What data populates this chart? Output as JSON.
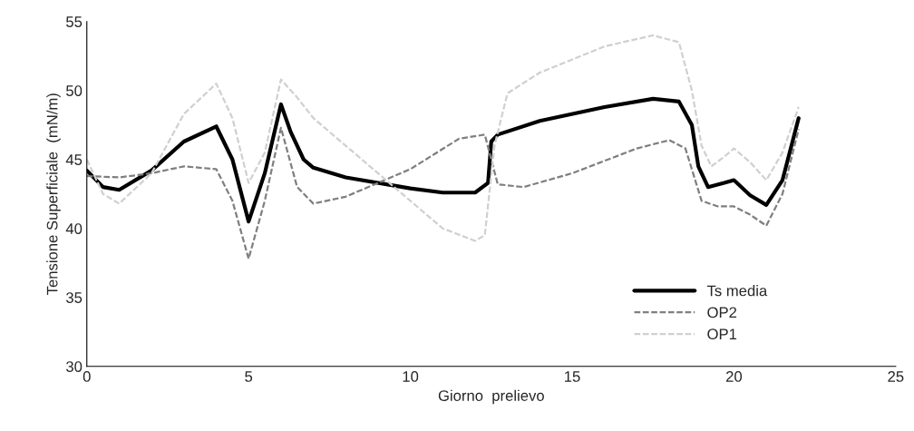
{
  "chart_data": {
    "type": "line",
    "xlabel": "Giorno  prelievo",
    "ylabel": "Tensione Superficiale  (mN/m)",
    "xlim": [
      0,
      25
    ],
    "xticks": [
      0,
      5,
      10,
      15,
      20,
      25
    ],
    "ylim": [
      30,
      55
    ],
    "yticks": [
      30,
      35,
      40,
      45,
      50,
      55
    ],
    "grid": false,
    "legend": "bottom right",
    "marker": "none",
    "series": [
      {
        "name": "Ts media",
        "color": "#000000",
        "line_style": "solid",
        "x": [
          0,
          0.5,
          1,
          2,
          3,
          4,
          4.5,
          5,
          5.5,
          6,
          6.3,
          6.7,
          7,
          8,
          10,
          11,
          12,
          12.4,
          12.5,
          12.7,
          14,
          16,
          17.5,
          18.3,
          18.7,
          18.9,
          19.2,
          19.7,
          20,
          20.5,
          21,
          21.5,
          22
        ],
        "values": [
          44.2,
          43.0,
          42.8,
          44.2,
          46.3,
          47.4,
          45,
          40.5,
          44,
          49,
          47,
          45,
          44.4,
          43.7,
          42.9,
          42.6,
          42.6,
          43.3,
          46.3,
          46.8,
          47.8,
          48.8,
          49.4,
          49.2,
          47.5,
          44.5,
          43,
          43.3,
          43.5,
          42.4,
          41.7,
          43.5,
          48
        ]
      },
      {
        "name": "OP2",
        "color": "#7f7f7f",
        "line_style": "dashed",
        "x": [
          0,
          1,
          2,
          3,
          4,
          4.5,
          5,
          5.5,
          6,
          6.5,
          7,
          8,
          10,
          11.5,
          12.3,
          12.5,
          12.7,
          13.5,
          15,
          17,
          18,
          18.5,
          19,
          19.5,
          20,
          20.5,
          21,
          21.5,
          22
        ],
        "values": [
          43.8,
          43.7,
          44,
          44.5,
          44.3,
          42,
          37.8,
          42,
          47.3,
          43,
          41.8,
          42.3,
          44.3,
          46.5,
          46.8,
          45,
          43.2,
          43,
          44,
          45.8,
          46.4,
          45.8,
          42,
          41.6,
          41.6,
          41,
          40.2,
          42.5,
          47.2
        ]
      },
      {
        "name": "OP1",
        "color": "#d0d0d0",
        "line_style": "dashed",
        "x": [
          0,
          0.5,
          1,
          2,
          3,
          4,
          4.5,
          5,
          5.5,
          6,
          6.5,
          7,
          8,
          10,
          11,
          12,
          12.3,
          12.6,
          13,
          14,
          16,
          17.5,
          18.3,
          18.7,
          19,
          19.3,
          19.7,
          20,
          20.5,
          21,
          21.5,
          22
        ],
        "values": [
          45,
          42.5,
          41.8,
          44,
          48.3,
          50.5,
          48,
          43.3,
          45.5,
          50.8,
          49.5,
          48,
          46,
          42,
          40,
          39.1,
          39.5,
          46,
          49.8,
          51.3,
          53.2,
          54,
          53.5,
          50,
          46,
          44.5,
          45.2,
          45.8,
          44.8,
          43.5,
          45.5,
          48.8
        ]
      }
    ]
  }
}
